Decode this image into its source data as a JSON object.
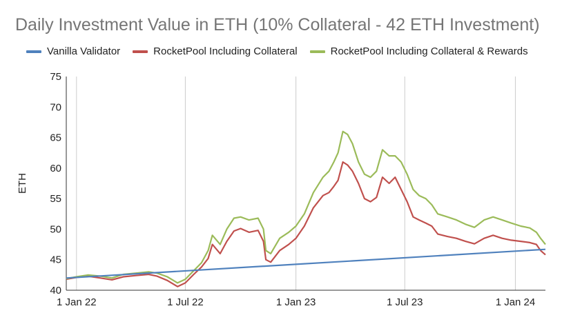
{
  "chart_data": {
    "type": "line",
    "title": "Daily Investment Value in ETH (10% Collateral - 42 ETH Investment)",
    "xlabel": "",
    "ylabel": "ETH",
    "ylim": [
      40,
      75
    ],
    "yticks": [
      40,
      45,
      50,
      55,
      60,
      65,
      70,
      75
    ],
    "xlim": [
      "2021-12-15",
      "2024-02-20"
    ],
    "xticks": [
      {
        "date": "2022-01-01",
        "label": "1 Jan 22"
      },
      {
        "date": "2022-07-01",
        "label": "1 Jul 22"
      },
      {
        "date": "2023-01-01",
        "label": "1 Jan 23"
      },
      {
        "date": "2023-07-01",
        "label": "1 Jul 23"
      },
      {
        "date": "2024-01-01",
        "label": "1 Jan 24"
      }
    ],
    "grid": "vertical",
    "legend_position": "top",
    "series": [
      {
        "name": "Vanilla Validator",
        "color": "#4f81bd",
        "points": [
          [
            "2021-12-15",
            42.0
          ],
          [
            "2024-02-20",
            46.7
          ]
        ]
      },
      {
        "name": "RocketPool Including Collateral",
        "color": "#c0504d",
        "points": [
          [
            "2021-12-15",
            41.8
          ],
          [
            "2022-01-01",
            42.1
          ],
          [
            "2022-01-20",
            42.3
          ],
          [
            "2022-02-10",
            42.0
          ],
          [
            "2022-03-01",
            41.7
          ],
          [
            "2022-03-20",
            42.2
          ],
          [
            "2022-04-10",
            42.4
          ],
          [
            "2022-05-01",
            42.6
          ],
          [
            "2022-05-15",
            42.3
          ],
          [
            "2022-06-01",
            41.6
          ],
          [
            "2022-06-18",
            40.6
          ],
          [
            "2022-07-01",
            41.2
          ],
          [
            "2022-07-15",
            42.6
          ],
          [
            "2022-07-28",
            43.8
          ],
          [
            "2022-08-08",
            45.2
          ],
          [
            "2022-08-15",
            47.5
          ],
          [
            "2022-08-28",
            46.0
          ],
          [
            "2022-09-08",
            48.0
          ],
          [
            "2022-09-20",
            49.7
          ],
          [
            "2022-10-01",
            50.1
          ],
          [
            "2022-10-15",
            49.5
          ],
          [
            "2022-10-30",
            49.8
          ],
          [
            "2022-11-08",
            48.0
          ],
          [
            "2022-11-12",
            45.0
          ],
          [
            "2022-11-20",
            44.6
          ],
          [
            "2022-12-05",
            46.5
          ],
          [
            "2022-12-20",
            47.5
          ],
          [
            "2023-01-01",
            48.5
          ],
          [
            "2023-01-15",
            50.5
          ],
          [
            "2023-01-30",
            53.5
          ],
          [
            "2023-02-15",
            55.5
          ],
          [
            "2023-02-25",
            56.0
          ],
          [
            "2023-03-05",
            57.0
          ],
          [
            "2023-03-12",
            58.0
          ],
          [
            "2023-03-20",
            61.0
          ],
          [
            "2023-03-28",
            60.5
          ],
          [
            "2023-04-05",
            59.5
          ],
          [
            "2023-04-15",
            57.5
          ],
          [
            "2023-04-25",
            55.0
          ],
          [
            "2023-05-05",
            54.5
          ],
          [
            "2023-05-15",
            55.2
          ],
          [
            "2023-05-25",
            58.5
          ],
          [
            "2023-06-05",
            57.5
          ],
          [
            "2023-06-15",
            58.5
          ],
          [
            "2023-06-25",
            56.5
          ],
          [
            "2023-07-05",
            54.5
          ],
          [
            "2023-07-15",
            52.0
          ],
          [
            "2023-07-25",
            51.5
          ],
          [
            "2023-08-05",
            51.0
          ],
          [
            "2023-08-15",
            50.5
          ],
          [
            "2023-08-25",
            49.2
          ],
          [
            "2023-09-10",
            48.8
          ],
          [
            "2023-09-25",
            48.5
          ],
          [
            "2023-10-10",
            48.0
          ],
          [
            "2023-10-25",
            47.6
          ],
          [
            "2023-11-10",
            48.5
          ],
          [
            "2023-11-25",
            49.0
          ],
          [
            "2023-12-10",
            48.5
          ],
          [
            "2023-12-25",
            48.2
          ],
          [
            "2024-01-10",
            48.0
          ],
          [
            "2024-01-25",
            47.8
          ],
          [
            "2024-02-05",
            47.5
          ],
          [
            "2024-02-12",
            46.5
          ],
          [
            "2024-02-20",
            45.8
          ]
        ]
      },
      {
        "name": "RocketPool Including Collateral & Rewards",
        "color": "#9bbb59",
        "points": [
          [
            "2021-12-15",
            41.9
          ],
          [
            "2022-01-01",
            42.2
          ],
          [
            "2022-01-20",
            42.5
          ],
          [
            "2022-02-10",
            42.3
          ],
          [
            "2022-03-01",
            42.0
          ],
          [
            "2022-03-20",
            42.6
          ],
          [
            "2022-04-10",
            42.8
          ],
          [
            "2022-05-01",
            43.0
          ],
          [
            "2022-05-15",
            42.8
          ],
          [
            "2022-06-01",
            42.2
          ],
          [
            "2022-06-18",
            41.2
          ],
          [
            "2022-07-01",
            41.8
          ],
          [
            "2022-07-15",
            43.2
          ],
          [
            "2022-07-28",
            44.5
          ],
          [
            "2022-08-08",
            46.5
          ],
          [
            "2022-08-15",
            49.0
          ],
          [
            "2022-08-28",
            47.5
          ],
          [
            "2022-09-08",
            50.0
          ],
          [
            "2022-09-20",
            51.8
          ],
          [
            "2022-10-01",
            52.0
          ],
          [
            "2022-10-15",
            51.5
          ],
          [
            "2022-10-30",
            51.8
          ],
          [
            "2022-11-08",
            50.0
          ],
          [
            "2022-11-12",
            46.5
          ],
          [
            "2022-11-20",
            46.0
          ],
          [
            "2022-12-05",
            48.5
          ],
          [
            "2022-12-20",
            49.5
          ],
          [
            "2023-01-01",
            50.5
          ],
          [
            "2023-01-15",
            52.5
          ],
          [
            "2023-01-30",
            56.0
          ],
          [
            "2023-02-15",
            58.5
          ],
          [
            "2023-02-25",
            59.5
          ],
          [
            "2023-03-05",
            61.0
          ],
          [
            "2023-03-12",
            62.5
          ],
          [
            "2023-03-20",
            66.0
          ],
          [
            "2023-03-28",
            65.5
          ],
          [
            "2023-04-05",
            64.0
          ],
          [
            "2023-04-15",
            61.0
          ],
          [
            "2023-04-25",
            59.0
          ],
          [
            "2023-05-05",
            58.5
          ],
          [
            "2023-05-15",
            59.5
          ],
          [
            "2023-05-25",
            63.0
          ],
          [
            "2023-06-05",
            62.0
          ],
          [
            "2023-06-15",
            62.0
          ],
          [
            "2023-06-25",
            61.0
          ],
          [
            "2023-07-05",
            59.0
          ],
          [
            "2023-07-15",
            56.5
          ],
          [
            "2023-07-25",
            55.5
          ],
          [
            "2023-08-05",
            55.0
          ],
          [
            "2023-08-15",
            54.0
          ],
          [
            "2023-08-25",
            52.5
          ],
          [
            "2023-09-10",
            52.0
          ],
          [
            "2023-09-25",
            51.5
          ],
          [
            "2023-10-10",
            50.8
          ],
          [
            "2023-10-25",
            50.3
          ],
          [
            "2023-11-10",
            51.5
          ],
          [
            "2023-11-25",
            52.0
          ],
          [
            "2023-12-10",
            51.5
          ],
          [
            "2023-12-25",
            51.0
          ],
          [
            "2024-01-10",
            50.5
          ],
          [
            "2024-01-25",
            50.2
          ],
          [
            "2024-02-05",
            49.5
          ],
          [
            "2024-02-12",
            48.5
          ],
          [
            "2024-02-20",
            47.5
          ]
        ]
      }
    ]
  }
}
